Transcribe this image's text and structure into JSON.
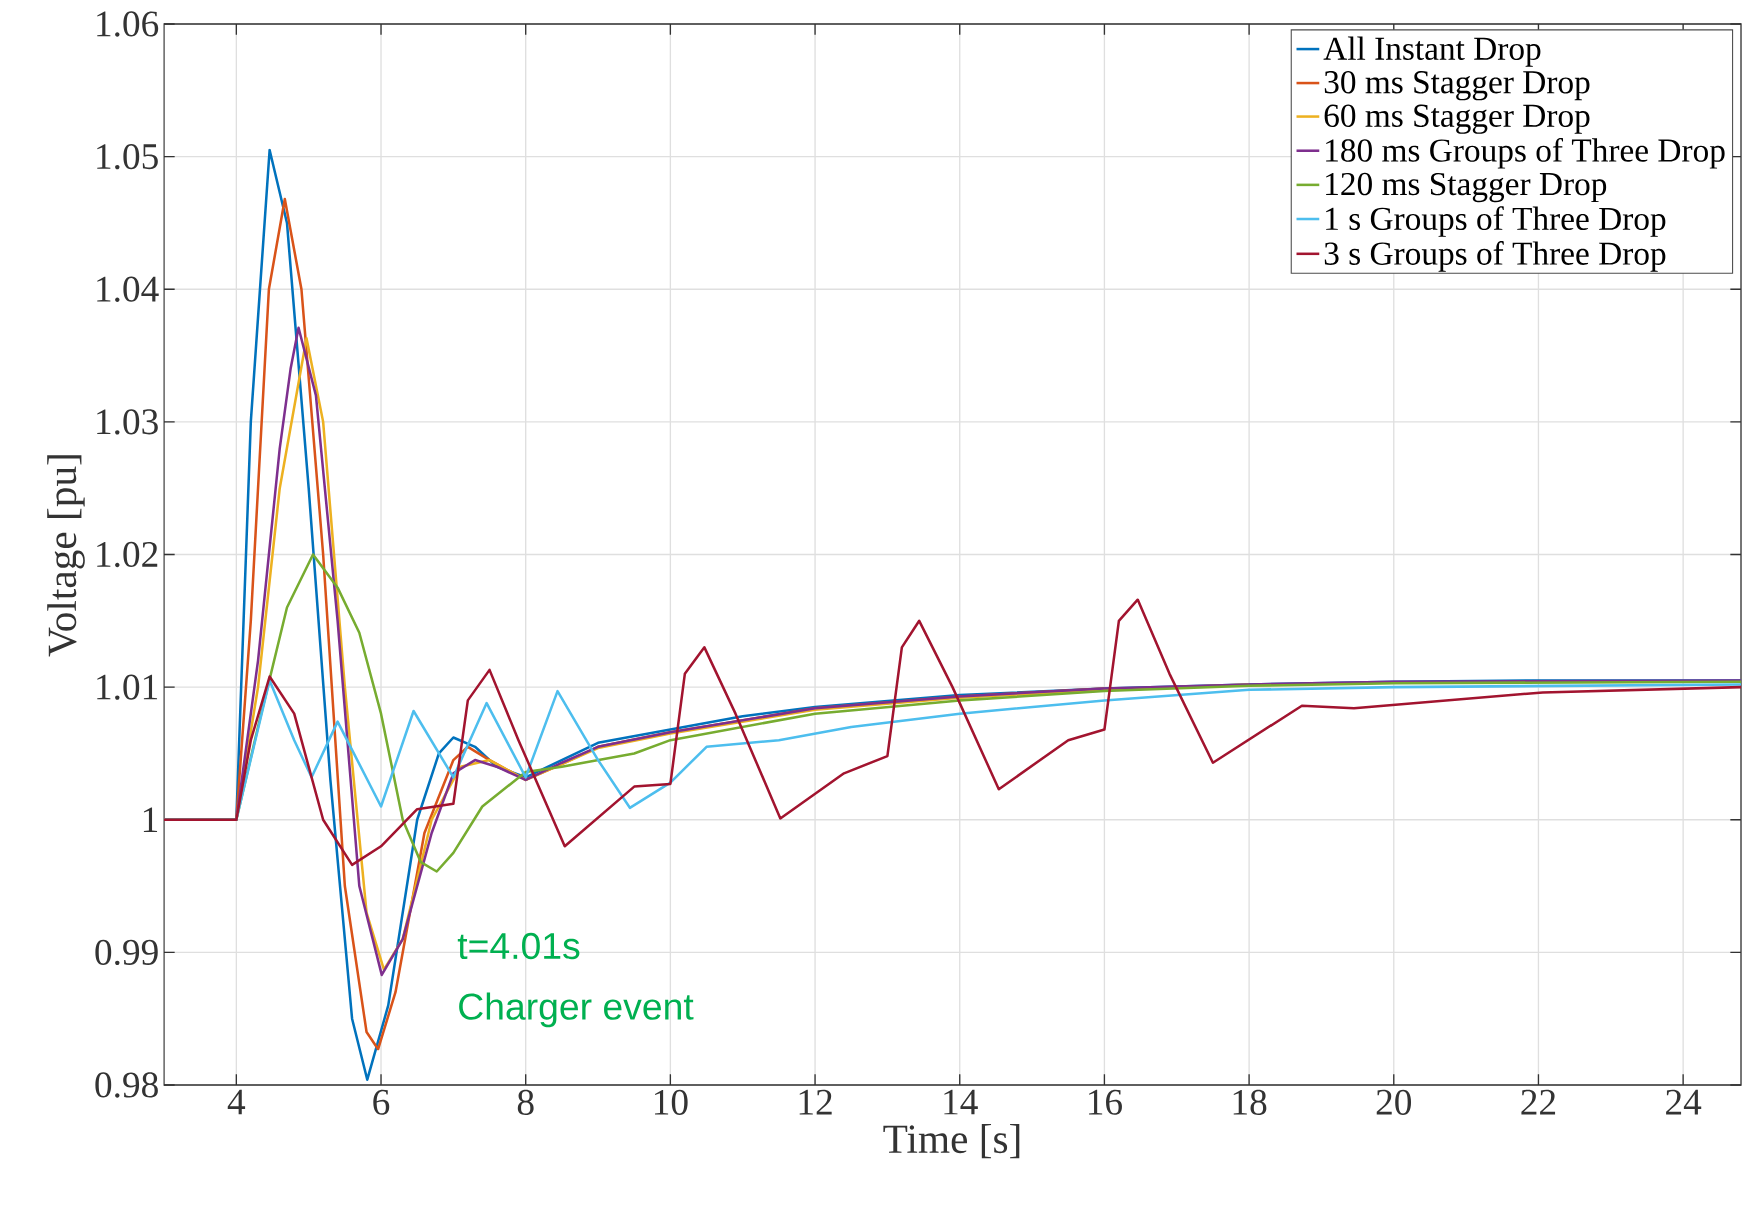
{
  "chart_data": {
    "type": "line",
    "xlabel": "Time [s]",
    "ylabel": "Voltage [pu]",
    "xlim": [
      3,
      24.8
    ],
    "ylim": [
      0.98,
      1.06
    ],
    "xticks": [
      4,
      6,
      8,
      10,
      12,
      14,
      16,
      18,
      20,
      22,
      24
    ],
    "yticks": [
      0.98,
      0.99,
      1,
      1.01,
      1.02,
      1.03,
      1.04,
      1.05,
      1.06
    ],
    "grid": true,
    "legend": "top right",
    "annotations": [
      "t=4.01s",
      "Charger event"
    ],
    "series": [
      {
        "name": "All Instant Drop",
        "color": "#0072bd",
        "x": [
          3,
          4,
          4.2,
          4.46,
          4.7,
          5.0,
          5.3,
          5.6,
          5.81,
          6.1,
          6.5,
          6.8,
          7.0,
          7.3,
          7.6,
          8.0,
          8.5,
          9,
          10,
          11,
          12,
          14,
          16,
          18,
          20,
          22,
          24.8
        ],
        "values": [
          1,
          1,
          1.03,
          1.0505,
          1.045,
          1.025,
          1.003,
          0.985,
          0.9804,
          0.986,
          1.0,
          1.005,
          1.0062,
          1.0055,
          1.004,
          1.0032,
          1.0045,
          1.0058,
          1.0068,
          1.0078,
          1.0085,
          1.0094,
          1.0099,
          1.0102,
          1.0104,
          1.0105,
          1.0105
        ]
      },
      {
        "name": "30 ms Stagger Drop",
        "color": "#d95319",
        "x": [
          3,
          4,
          4.2,
          4.45,
          4.67,
          4.9,
          5.2,
          5.5,
          5.8,
          5.96,
          6.2,
          6.6,
          7.0,
          7.2,
          7.5,
          8.0,
          8.5,
          9,
          10,
          12,
          14,
          16
        ],
        "values": [
          1,
          1,
          1.015,
          1.04,
          1.0468,
          1.04,
          1.02,
          0.995,
          0.984,
          0.9827,
          0.987,
          0.999,
          1.0045,
          1.0055,
          1.0045,
          1.003,
          1.0042,
          1.0055,
          1.0066,
          1.0084,
          1.0093,
          1.0099
        ]
      },
      {
        "name": "60 ms Stagger Drop",
        "color": "#edb120",
        "x": [
          3,
          4,
          4.3,
          4.6,
          4.97,
          5.2,
          5.5,
          5.8,
          6.04,
          6.3,
          6.7,
          7.1,
          7.5,
          8.0,
          8.5,
          9,
          10,
          12,
          14,
          16,
          18
        ],
        "values": [
          1,
          1,
          1.01,
          1.025,
          1.0363,
          1.03,
          1.01,
          0.993,
          0.9887,
          0.991,
          1.0,
          1.004,
          1.0045,
          1.003,
          1.0042,
          1.0054,
          1.0065,
          1.0083,
          1.0092,
          1.0098,
          1.0102
        ]
      },
      {
        "name": "180 ms Groups of Three Drop",
        "color": "#7e2f8e",
        "x": [
          3,
          4,
          4.3,
          4.6,
          4.75,
          4.86,
          5.1,
          5.4,
          5.7,
          6.01,
          6.3,
          6.7,
          7.0,
          7.3,
          7.6,
          8.0,
          8.5,
          9,
          10,
          12,
          14,
          16,
          18,
          20,
          24.8
        ],
        "values": [
          1,
          1,
          1.012,
          1.028,
          1.034,
          1.0371,
          1.032,
          1.015,
          0.995,
          0.9883,
          0.991,
          0.999,
          1.0035,
          1.0045,
          1.004,
          1.003,
          1.0043,
          1.0055,
          1.0066,
          1.0084,
          1.0093,
          1.0099,
          1.0102,
          1.0104,
          1.0105
        ]
      },
      {
        "name": "120 ms Stagger Drop",
        "color": "#77ac30",
        "x": [
          3,
          4,
          4.3,
          4.7,
          5.06,
          5.4,
          5.7,
          6.0,
          6.3,
          6.55,
          6.77,
          7.0,
          7.4,
          8.0,
          8.5,
          9.5,
          10,
          12,
          14,
          16,
          18,
          20,
          24.8
        ],
        "values": [
          1,
          1,
          1.007,
          1.016,
          1.02,
          1.0175,
          1.0141,
          1.008,
          1.0,
          0.9968,
          0.9961,
          0.9975,
          1.001,
          1.0036,
          1.004,
          1.005,
          1.006,
          1.008,
          1.009,
          1.0097,
          1.0101,
          1.0103,
          1.0104
        ]
      },
      {
        "name": "1 s Groups of Three Drop",
        "color": "#4dbeee",
        "x": [
          3,
          4,
          4.46,
          4.8,
          5.04,
          5.4,
          6.0,
          6.45,
          7.0,
          7.46,
          8.0,
          8.44,
          9.0,
          9.44,
          10.0,
          10.5,
          11.5,
          12.5,
          14,
          16,
          18,
          20,
          24.8
        ],
        "values": [
          1,
          1,
          1.0105,
          1.006,
          1.0032,
          1.0074,
          1.001,
          1.0082,
          1.0032,
          1.0088,
          1.0032,
          1.0097,
          1.0045,
          1.0009,
          1.0028,
          1.0055,
          1.006,
          1.007,
          1.008,
          1.009,
          1.0098,
          1.01,
          1.0102
        ]
      },
      {
        "name": "3 s Groups of Three Drop",
        "color": "#a2142f",
        "x": [
          3,
          4,
          4.2,
          4.46,
          4.8,
          5.2,
          5.6,
          6.0,
          6.5,
          7.0,
          7.2,
          7.5,
          7.9,
          8.54,
          9.5,
          10.0,
          10.2,
          10.47,
          10.9,
          11.52,
          12.4,
          13.0,
          13.2,
          13.44,
          13.9,
          14.54,
          15.5,
          16.0,
          16.2,
          16.46,
          16.9,
          17.5,
          18.73,
          19.45,
          22.06,
          24.8
        ],
        "values": [
          1,
          1,
          1.006,
          1.0108,
          1.008,
          1.0,
          0.9966,
          0.998,
          1.0008,
          1.0012,
          1.009,
          1.0113,
          1.006,
          0.998,
          1.0025,
          1.0027,
          1.011,
          1.013,
          1.008,
          1.0001,
          1.0035,
          1.0048,
          1.013,
          1.015,
          1.01,
          1.0023,
          1.006,
          1.0068,
          1.015,
          1.0166,
          1.011,
          1.0043,
          1.0086,
          1.0084,
          1.0096,
          1.01
        ]
      }
    ]
  }
}
